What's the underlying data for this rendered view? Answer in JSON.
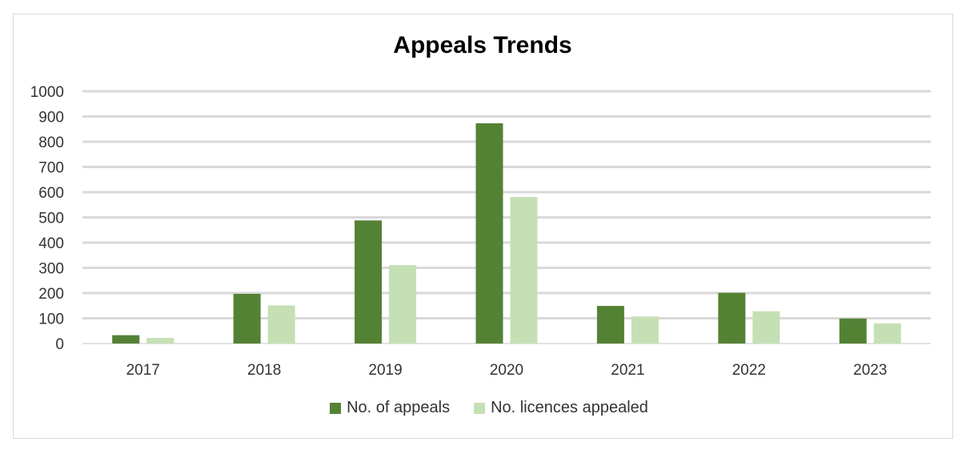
{
  "chart_data": {
    "type": "bar",
    "title": "Appeals Trends",
    "categories": [
      "2017",
      "2018",
      "2019",
      "2020",
      "2021",
      "2022",
      "2023"
    ],
    "series": [
      {
        "name": "No. of appeals",
        "color": "#548235",
        "values": [
          33,
          197,
          488,
          873,
          149,
          201,
          99
        ]
      },
      {
        "name": "No. licences appealed",
        "color": "#c5e0b4",
        "values": [
          22,
          151,
          311,
          581,
          107,
          128,
          80
        ]
      }
    ],
    "ylim": [
      0,
      1000
    ],
    "yticks": [
      0,
      100,
      200,
      300,
      400,
      500,
      600,
      700,
      800,
      900,
      1000
    ],
    "grid": true,
    "gridline_color": "#d9d9d9",
    "legend_position": "bottom"
  }
}
